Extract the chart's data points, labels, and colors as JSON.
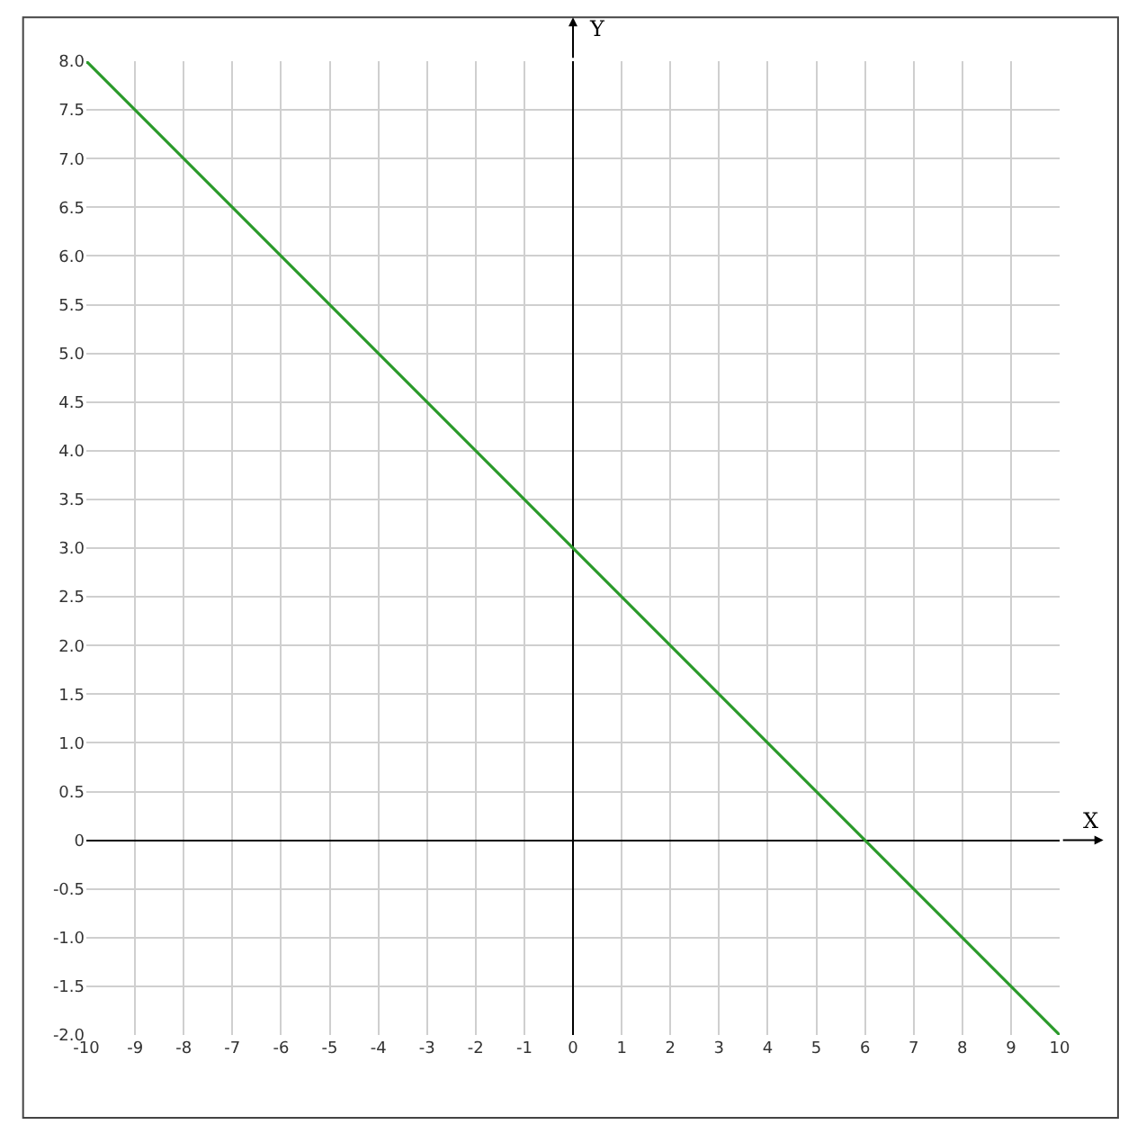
{
  "chart_data": {
    "type": "line",
    "xlabel": "X",
    "ylabel": "Y",
    "x": [
      -10,
      10
    ],
    "series": [
      {
        "color": "#2a9a2a",
        "values": [
          8,
          -2
        ]
      }
    ],
    "xlim": [
      -10,
      10
    ],
    "ylim": [
      -2,
      8
    ],
    "xticks": [
      -10,
      -9,
      -8,
      -7,
      -6,
      -5,
      -4,
      -3,
      -2,
      -1,
      0,
      1,
      2,
      3,
      4,
      5,
      6,
      7,
      8,
      9,
      10
    ],
    "yticks": [
      {
        "value": -2,
        "label": "-2.0"
      },
      {
        "value": -1.5,
        "label": "-1.5"
      },
      {
        "value": -1,
        "label": "-1.0"
      },
      {
        "value": -0.5,
        "label": "-0.5"
      },
      0,
      {
        "value": 0.5,
        "label": "0.5"
      },
      {
        "value": 1,
        "label": "1.0"
      },
      {
        "value": 1.5,
        "label": "1.5"
      },
      {
        "value": 2,
        "label": "2.0"
      },
      {
        "value": 2.5,
        "label": "2.5"
      },
      {
        "value": 3,
        "label": "3.0"
      },
      {
        "value": 3.5,
        "label": "3.5"
      },
      {
        "value": 4,
        "label": "4.0"
      },
      {
        "value": 4.5,
        "label": "4.5"
      },
      {
        "value": 5,
        "label": "5.0"
      },
      {
        "value": 5.5,
        "label": "5.5"
      },
      {
        "value": 6,
        "label": "6.0"
      },
      {
        "value": 6.5,
        "label": "6.5"
      },
      {
        "value": 7,
        "label": "7.0"
      },
      {
        "value": 7.5,
        "label": "7.5"
      },
      {
        "value": 8,
        "label": "8.0"
      }
    ],
    "grid": true,
    "marker": "none",
    "line_style": "solid"
  }
}
